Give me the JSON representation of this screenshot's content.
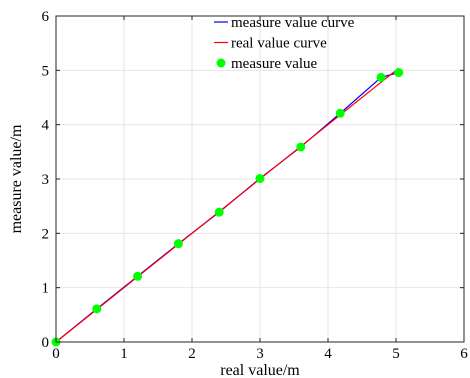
{
  "chart_data": {
    "type": "line",
    "title": "",
    "xlabel": "real value/m",
    "ylabel": "measure value/m",
    "xlim": [
      0,
      6
    ],
    "ylim": [
      0,
      6
    ],
    "xticks": [
      "0",
      "1",
      "2",
      "3",
      "4",
      "5",
      "6"
    ],
    "yticks": [
      "0",
      "1",
      "2",
      "3",
      "4",
      "5",
      "6"
    ],
    "grid": true,
    "legend_position": "top-center",
    "series": [
      {
        "name": "measure value curve",
        "style": "line",
        "color": "#0000ff",
        "x": [
          0,
          0.6,
          1.2,
          1.8,
          2.4,
          3.0,
          3.6,
          4.18,
          4.78,
          5.04
        ],
        "y": [
          0,
          0.61,
          1.21,
          1.81,
          2.39,
          3.01,
          3.59,
          4.21,
          4.87,
          4.96
        ]
      },
      {
        "name": "real value curve",
        "style": "line",
        "color": "#ff0000",
        "x": [
          0,
          5.04
        ],
        "y": [
          0,
          5.04
        ]
      },
      {
        "name": "measure value",
        "style": "marker",
        "color": "#00ff00",
        "x": [
          0,
          0.6,
          1.2,
          1.8,
          2.4,
          3.0,
          3.6,
          4.18,
          4.78,
          5.04
        ],
        "y": [
          0,
          0.61,
          1.21,
          1.81,
          2.39,
          3.01,
          3.59,
          4.21,
          4.87,
          4.96
        ]
      }
    ]
  }
}
